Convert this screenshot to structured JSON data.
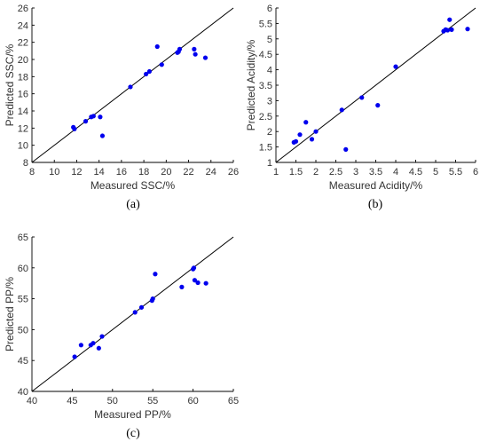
{
  "chart_data": [
    {
      "type": "scatter",
      "caption": "(a)",
      "xlabel": "Measured SSC/%",
      "ylabel": "Predicted SSC/%",
      "xlim": [
        8,
        26
      ],
      "ylim": [
        8,
        26
      ],
      "xticks": [
        "8",
        "10",
        "12",
        "14",
        "16",
        "18",
        "20",
        "22",
        "24",
        "26"
      ],
      "yticks": [
        "8",
        "10",
        "12",
        "14",
        "16",
        "18",
        "20",
        "22",
        "24",
        "26"
      ],
      "reference_line": "y = x",
      "marker_color": "#0000ee",
      "points": [
        [
          11.7,
          12.1
        ],
        [
          11.8,
          11.9
        ],
        [
          12.8,
          12.8
        ],
        [
          13.3,
          13.3
        ],
        [
          13.5,
          13.4
        ],
        [
          14.1,
          13.3
        ],
        [
          14.3,
          11.1
        ],
        [
          16.8,
          16.8
        ],
        [
          18.2,
          18.3
        ],
        [
          18.5,
          18.6
        ],
        [
          19.2,
          21.5
        ],
        [
          19.6,
          19.4
        ],
        [
          21.0,
          20.8
        ],
        [
          21.1,
          20.9
        ],
        [
          21.2,
          21.2
        ],
        [
          22.5,
          21.2
        ],
        [
          22.6,
          20.6
        ],
        [
          23.5,
          20.2
        ]
      ]
    },
    {
      "type": "scatter",
      "caption": "(b)",
      "xlabel": "Measured Acidity/%",
      "ylabel": "Predicted Acidity/%",
      "xlim": [
        1,
        6
      ],
      "ylim": [
        1,
        6
      ],
      "xticks": [
        "1",
        "1.5",
        "2",
        "2.5",
        "3",
        "3.5",
        "4",
        "4.5",
        "5",
        "5.5",
        "6"
      ],
      "yticks": [
        "1",
        "1.5",
        "2",
        "2.5",
        "3",
        "3.5",
        "4",
        "4.5",
        "5",
        "5.5",
        "6"
      ],
      "reference_line": "y = x",
      "marker_color": "#0000ee",
      "points": [
        [
          1.45,
          1.65
        ],
        [
          1.5,
          1.68
        ],
        [
          1.6,
          1.9
        ],
        [
          1.75,
          2.3
        ],
        [
          1.9,
          1.75
        ],
        [
          2.0,
          2.0
        ],
        [
          2.65,
          2.7
        ],
        [
          2.75,
          1.42
        ],
        [
          3.15,
          3.1
        ],
        [
          3.55,
          2.85
        ],
        [
          4.0,
          4.1
        ],
        [
          5.2,
          5.25
        ],
        [
          5.25,
          5.3
        ],
        [
          5.3,
          5.28
        ],
        [
          5.35,
          5.62
        ],
        [
          5.4,
          5.3
        ],
        [
          5.8,
          5.32
        ]
      ]
    },
    {
      "type": "scatter",
      "caption": "(c)",
      "xlabel": "Measured PP/%",
      "ylabel": "Predicted PP/%",
      "xlim": [
        40,
        65
      ],
      "ylim": [
        40,
        65
      ],
      "xticks": [
        "40",
        "45",
        "50",
        "55",
        "60",
        "65"
      ],
      "yticks": [
        "40",
        "45",
        "50",
        "55",
        "60",
        "65"
      ],
      "reference_line": "y = x",
      "marker_color": "#0000ee",
      "points": [
        [
          45.3,
          45.6
        ],
        [
          46.1,
          47.5
        ],
        [
          47.3,
          47.5
        ],
        [
          47.6,
          47.8
        ],
        [
          48.3,
          47.0
        ],
        [
          48.7,
          48.9
        ],
        [
          52.8,
          52.8
        ],
        [
          53.6,
          53.6
        ],
        [
          54.9,
          54.7
        ],
        [
          55.0,
          55.0
        ],
        [
          55.3,
          59.0
        ],
        [
          58.6,
          56.9
        ],
        [
          60.0,
          59.8
        ],
        [
          60.1,
          60.0
        ],
        [
          60.2,
          58.0
        ],
        [
          60.6,
          57.6
        ],
        [
          61.6,
          57.5
        ]
      ]
    }
  ]
}
